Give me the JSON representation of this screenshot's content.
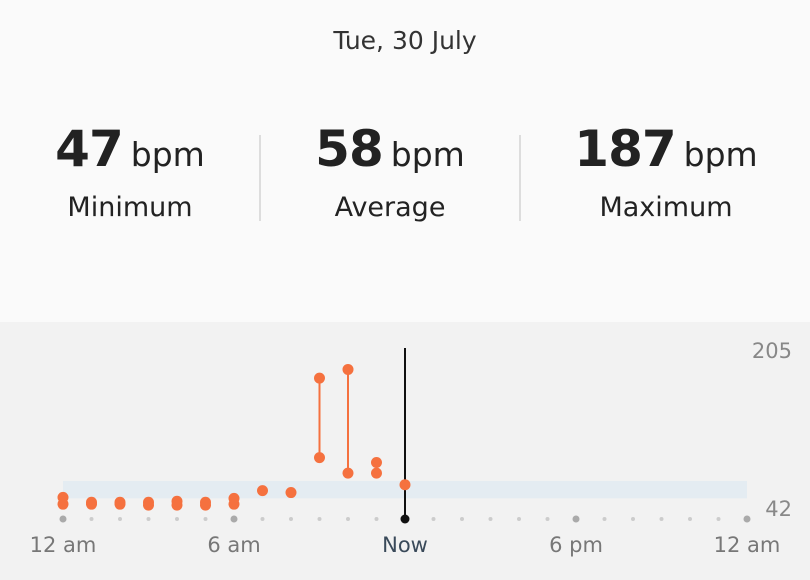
{
  "header": {
    "date": "Tue, 30 July"
  },
  "stats": [
    {
      "value": 47,
      "unit": "bpm",
      "label": "Minimum"
    },
    {
      "value": 58,
      "unit": "bpm",
      "label": "Average"
    },
    {
      "value": 187,
      "unit": "bpm",
      "label": "Maximum"
    }
  ],
  "chart_data": {
    "type": "range-dot",
    "color": "#f5713f",
    "x": [
      0,
      1,
      2,
      3,
      4,
      5,
      6,
      7,
      8,
      9,
      10,
      11,
      12
    ],
    "low": [
      48,
      48,
      48,
      47,
      47,
      47,
      48,
      62,
      60,
      96,
      80,
      80,
      68
    ],
    "high": [
      55,
      50,
      50,
      50,
      51,
      50,
      54,
      null,
      null,
      178,
      187,
      91,
      null
    ],
    "resting_range": [
      54,
      72
    ],
    "now": 12,
    "xlim": [
      0,
      24
    ],
    "xticks": [
      {
        "value": 0,
        "label": "12 am"
      },
      {
        "value": 6,
        "label": "6 am"
      },
      {
        "value": 12,
        "label": "Now"
      },
      {
        "value": 18,
        "label": "6 pm"
      },
      {
        "value": 24,
        "label": "12 am"
      }
    ],
    "minor_xticks": [
      0,
      1,
      2,
      3,
      4,
      5,
      6,
      7,
      8,
      9,
      10,
      11,
      12,
      13,
      14,
      15,
      16,
      17,
      18,
      19,
      20,
      21,
      22,
      23,
      24
    ],
    "ylim": [
      42,
      205
    ],
    "yticks": [
      42,
      205
    ]
  }
}
